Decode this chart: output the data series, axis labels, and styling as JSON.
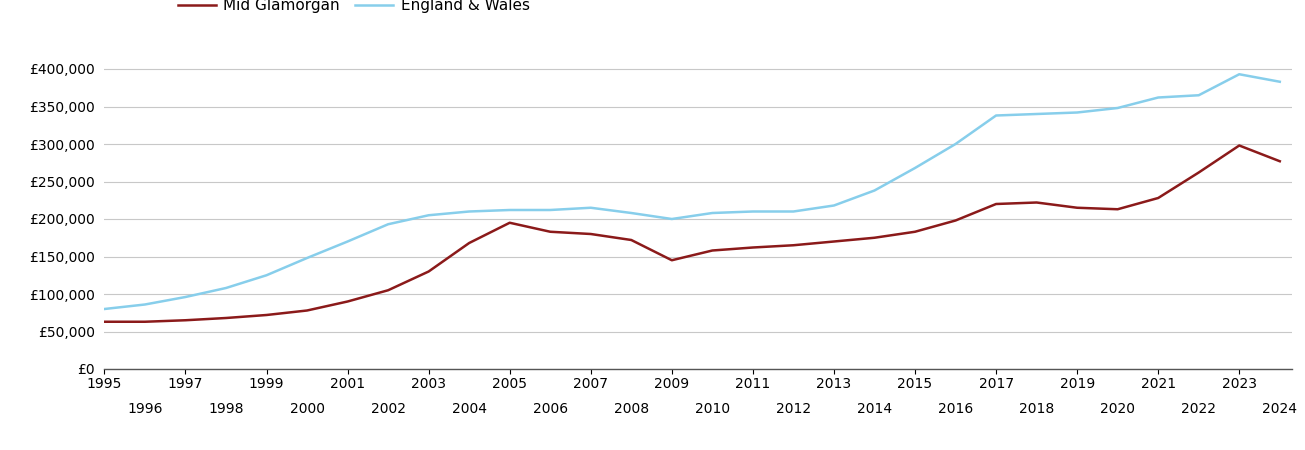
{
  "mid_glamorgan": {
    "years": [
      1995,
      1996,
      1997,
      1998,
      1999,
      2000,
      2001,
      2002,
      2003,
      2004,
      2005,
      2006,
      2007,
      2008,
      2009,
      2010,
      2011,
      2012,
      2013,
      2014,
      2015,
      2016,
      2017,
      2018,
      2019,
      2020,
      2021,
      2022,
      2023,
      2024
    ],
    "values": [
      63000,
      63000,
      65000,
      68000,
      72000,
      78000,
      90000,
      105000,
      130000,
      168000,
      195000,
      183000,
      180000,
      172000,
      145000,
      158000,
      162000,
      165000,
      170000,
      175000,
      183000,
      198000,
      220000,
      222000,
      215000,
      213000,
      228000,
      262000,
      298000,
      277000
    ]
  },
  "england_wales": {
    "years": [
      1995,
      1996,
      1997,
      1998,
      1999,
      2000,
      2001,
      2002,
      2003,
      2004,
      2005,
      2006,
      2007,
      2008,
      2009,
      2010,
      2011,
      2012,
      2013,
      2014,
      2015,
      2016,
      2017,
      2018,
      2019,
      2020,
      2021,
      2022,
      2023,
      2024
    ],
    "values": [
      80000,
      86000,
      96000,
      108000,
      125000,
      148000,
      170000,
      193000,
      205000,
      210000,
      212000,
      212000,
      215000,
      208000,
      200000,
      208000,
      210000,
      210000,
      218000,
      238000,
      268000,
      300000,
      338000,
      340000,
      342000,
      348000,
      362000,
      365000,
      393000,
      383000
    ]
  },
  "mid_glamorgan_color": "#8B1A1A",
  "england_wales_color": "#87CEEB",
  "mid_glamorgan_label": "Mid Glamorgan",
  "england_wales_label": "England & Wales",
  "ylim": [
    0,
    420000
  ],
  "yticks": [
    0,
    50000,
    100000,
    150000,
    200000,
    250000,
    300000,
    350000,
    400000
  ],
  "background_color": "#ffffff",
  "grid_color": "#c8c8c8",
  "line_width": 1.8,
  "legend_fontsize": 11,
  "tick_fontsize": 10,
  "xlim_left": 1995,
  "xlim_right": 2024.3
}
